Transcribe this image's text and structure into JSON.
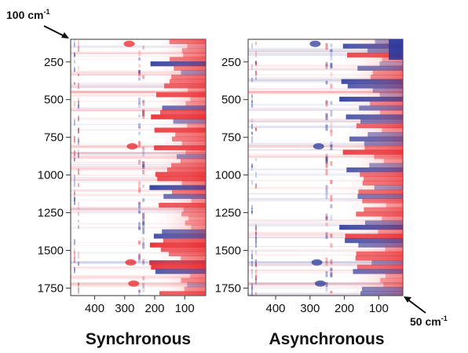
{
  "chart_data": [
    {
      "type": "heatmap",
      "title": "Synchronous",
      "xlabel": "",
      "ylabel": "",
      "xlim": [
        480,
        30
      ],
      "ylim": [
        100,
        1800
      ],
      "x_ticks": [
        400,
        300,
        200,
        100
      ],
      "y_ticks": [
        250,
        500,
        750,
        1000,
        1250,
        1500,
        1750
      ],
      "positive_color": "#e8262b",
      "negative_color": "#2b3a9c",
      "grid": false
    },
    {
      "type": "heatmap",
      "title": "Asynchronous",
      "xlabel": "",
      "ylabel": "",
      "xlim": [
        480,
        30
      ],
      "ylim": [
        100,
        1800
      ],
      "x_ticks": [
        400,
        300,
        200,
        100
      ],
      "y_ticks": [
        250,
        500,
        750,
        1000,
        1250,
        1500,
        1750
      ],
      "positive_color": "#e8262b",
      "negative_color": "#2b3a9c",
      "grid": false
    }
  ],
  "annotations": {
    "start_value": "100",
    "start_unit": "cm",
    "start_exp": "-1",
    "end_value": "50",
    "end_unit": "cm",
    "end_exp": "-1"
  }
}
